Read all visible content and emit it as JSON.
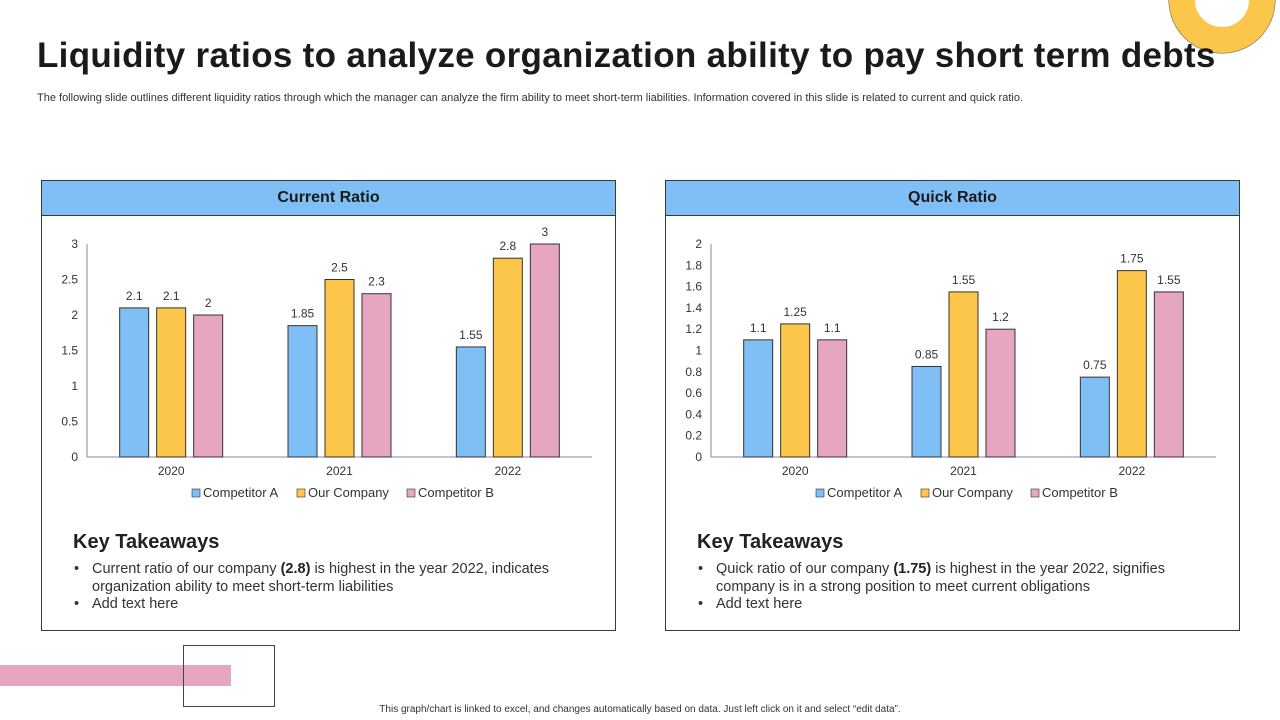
{
  "header": {
    "title": "Liquidity ratios to analyze organization ability to pay short term debts",
    "subtitle": "The following slide outlines different liquidity ratios through which the manager can analyze the firm ability to meet short-term liabilities. Information covered in this slide is related to current and quick ratio."
  },
  "footer": "This graph/chart is linked to excel, and changes automatically based on data. Just left click on it and select “edit data”.",
  "colors": {
    "competitor_a": "#80bff5",
    "our_company": "#fcc64a",
    "competitor_b": "#e6a5c0",
    "header": "#80bff5"
  },
  "panels": [
    {
      "header": "Current Ratio",
      "takeaways_title": "Key Takeaways",
      "takeaways": [
        {
          "pre": "Current ratio of our company ",
          "bold": "(2.8)",
          "post": " is highest in the year 2022, indicates organization ability to meet short-term liabilities"
        },
        {
          "pre": "Add text here",
          "bold": "",
          "post": ""
        }
      ]
    },
    {
      "header": "Quick Ratio",
      "takeaways_title": "Key Takeaways",
      "takeaways": [
        {
          "pre": "Quick ratio of our company ",
          "bold": "(1.75)",
          "post": " is highest in the year 2022, signifies company is in a strong position to meet current obligations"
        },
        {
          "pre": "Add text here",
          "bold": "",
          "post": ""
        }
      ]
    }
  ],
  "chart_data": [
    {
      "type": "bar",
      "title": "Current Ratio",
      "categories": [
        "2020",
        "2021",
        "2022"
      ],
      "series": [
        {
          "name": "Competitor A",
          "values": [
            2.1,
            1.85,
            1.55
          ]
        },
        {
          "name": "Our Company",
          "values": [
            2.1,
            2.5,
            2.8
          ]
        },
        {
          "name": "Competitor B",
          "values": [
            2,
            2.3,
            3
          ]
        }
      ],
      "ylim": [
        0,
        3
      ],
      "yticks": [
        "0",
        "0.5",
        "1",
        "1.5",
        "2",
        "2.5",
        "3"
      ],
      "value_labels": [
        [
          "2.1",
          "1.85",
          "1.55"
        ],
        [
          "2.1",
          "2.5",
          "2.8"
        ],
        [
          "2",
          "2.3",
          "3"
        ]
      ],
      "legend": "bottom",
      "grid": false
    },
    {
      "type": "bar",
      "title": "Quick Ratio",
      "categories": [
        "2020",
        "2021",
        "2022"
      ],
      "series": [
        {
          "name": "Competitor A",
          "values": [
            1.1,
            0.85,
            0.75
          ]
        },
        {
          "name": "Our Company",
          "values": [
            1.25,
            1.55,
            1.75
          ]
        },
        {
          "name": "Competitor B",
          "values": [
            1.1,
            1.2,
            1.55
          ]
        }
      ],
      "ylim": [
        0,
        2
      ],
      "yticks": [
        "0",
        "0.2",
        "0.4",
        "0.6",
        "0.8",
        "1",
        "1.2",
        "1.4",
        "1.6",
        "1.8",
        "2"
      ],
      "value_labels": [
        [
          "1.1",
          "0.85",
          "0.75"
        ],
        [
          "1.25",
          "1.55",
          "1.75"
        ],
        [
          "1.1",
          "1.2",
          "1.55"
        ]
      ],
      "legend": "bottom",
      "grid": false
    }
  ]
}
